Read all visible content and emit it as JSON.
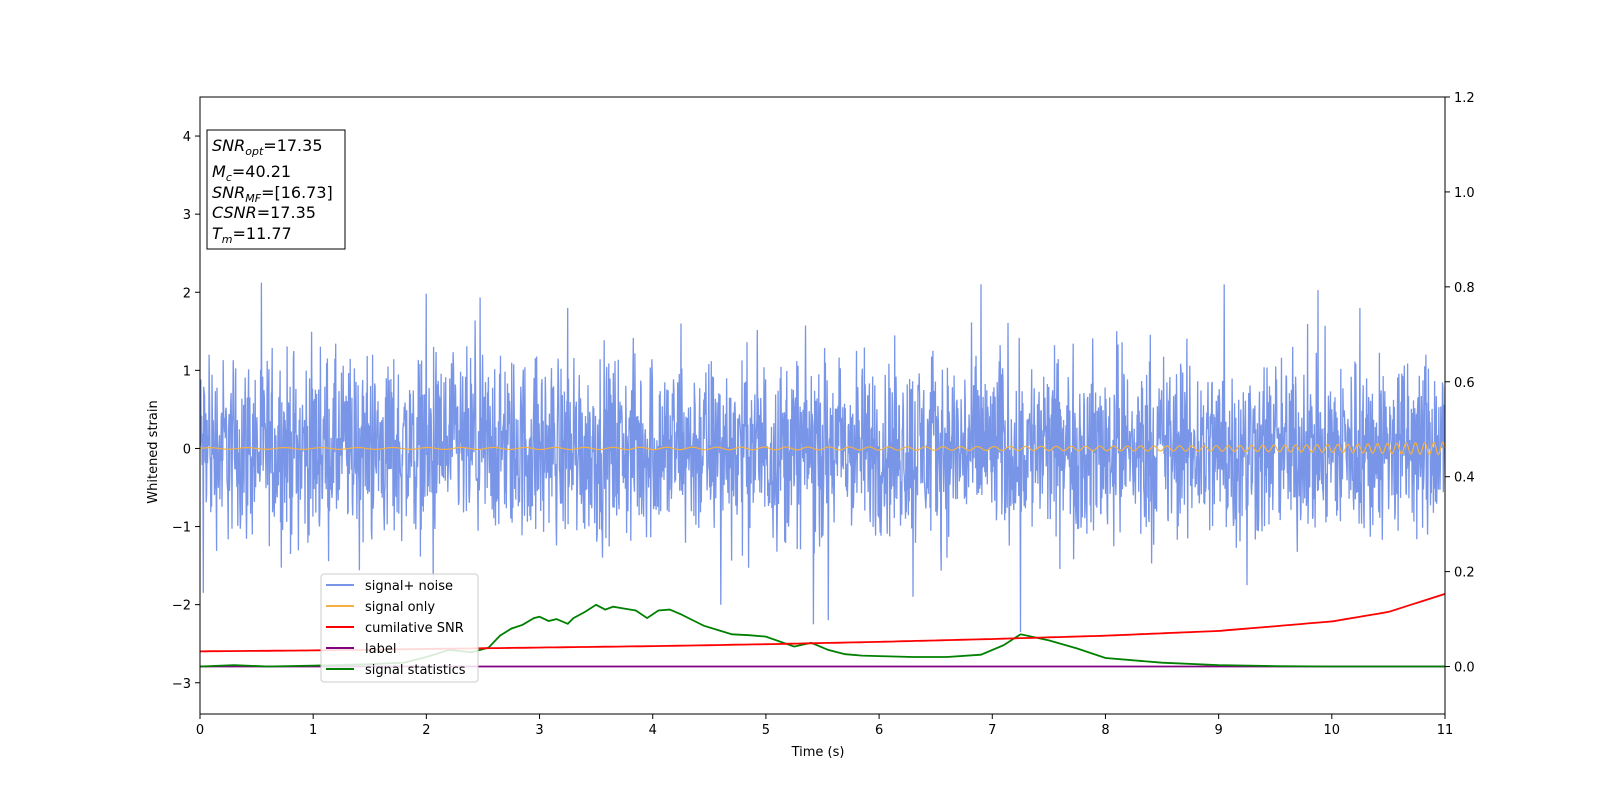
{
  "chart_data": {
    "type": "line",
    "xlabel": "Time (s)",
    "ylabel": "Whitened strain",
    "xlim": [
      0,
      11
    ],
    "ylim": [
      -3.4,
      4.5
    ],
    "ylim_right": [
      -0.1,
      1.2
    ],
    "x_ticks": [
      0,
      1,
      2,
      3,
      4,
      5,
      6,
      7,
      8,
      9,
      10,
      11
    ],
    "y_ticks": [
      -3,
      -2,
      -1,
      0,
      1,
      2,
      3,
      4
    ],
    "y_ticks_right": [
      "0.0",
      "0.2",
      "0.4",
      "0.6",
      "0.8",
      "1.0",
      "1.2"
    ],
    "grid": false,
    "legend_position": "lower-left",
    "series": [
      {
        "name": "signal+ noise",
        "axis": "left",
        "color": "#7895e8",
        "style": "noise-band",
        "typical_amplitude": 1.2,
        "spikes": [
          [
            0.03,
            -1.85
          ],
          [
            0.08,
            1.2
          ],
          [
            2.0,
            1.98
          ],
          [
            2.06,
            -1.75
          ],
          [
            3.25,
            1.8
          ],
          [
            4.25,
            1.6
          ],
          [
            4.6,
            -2.0
          ],
          [
            5.42,
            -2.25
          ],
          [
            5.55,
            -2.2
          ],
          [
            6.3,
            -1.9
          ],
          [
            6.9,
            2.1
          ],
          [
            7.25,
            -2.35
          ],
          [
            8.1,
            1.5
          ],
          [
            9.05,
            2.1
          ],
          [
            9.25,
            -1.75
          ],
          [
            10.25,
            1.8
          ]
        ]
      },
      {
        "name": "signal only",
        "axis": "left",
        "color": "#f5b041",
        "x": [
          0,
          2,
          4,
          6,
          8,
          9,
          10,
          10.5,
          11
        ],
        "amplitude": [
          0.01,
          0.012,
          0.015,
          0.02,
          0.03,
          0.035,
          0.05,
          0.065,
          0.08
        ]
      },
      {
        "name": "cumilative SNR",
        "axis": "right",
        "color": "#ff0000",
        "x": [
          0,
          1,
          2,
          3,
          4,
          5,
          6,
          7,
          8,
          9,
          10,
          10.5,
          11
        ],
        "values": [
          0.032,
          0.034,
          0.037,
          0.04,
          0.043,
          0.047,
          0.052,
          0.058,
          0.065,
          0.075,
          0.095,
          0.115,
          0.153
        ]
      },
      {
        "name": "label",
        "axis": "right",
        "color": "#800080",
        "x": [
          0,
          11
        ],
        "values": [
          0.0,
          0.0
        ]
      },
      {
        "name": "signal statistics",
        "axis": "right",
        "color": "#008000",
        "x": [
          0,
          0.3,
          0.6,
          1.0,
          1.5,
          1.8,
          2.0,
          2.2,
          2.4,
          2.55,
          2.65,
          2.75,
          2.85,
          2.95,
          3.0,
          3.08,
          3.15,
          3.25,
          3.3,
          3.4,
          3.5,
          3.58,
          3.65,
          3.75,
          3.85,
          3.95,
          4.05,
          4.15,
          4.25,
          4.35,
          4.45,
          4.6,
          4.7,
          4.85,
          5.0,
          5.25,
          5.4,
          5.55,
          5.7,
          5.85,
          6.0,
          6.3,
          6.6,
          6.9,
          7.1,
          7.25,
          7.5,
          7.75,
          8.0,
          8.5,
          9.0,
          9.5,
          10.0,
          10.5,
          11.0
        ],
        "values": [
          0.0,
          0.003,
          0.0,
          0.002,
          0.005,
          0.008,
          0.02,
          0.035,
          0.03,
          0.04,
          0.065,
          0.08,
          0.088,
          0.102,
          0.105,
          0.096,
          0.1,
          0.09,
          0.102,
          0.115,
          0.13,
          0.12,
          0.126,
          0.122,
          0.118,
          0.102,
          0.118,
          0.12,
          0.11,
          0.098,
          0.086,
          0.075,
          0.068,
          0.066,
          0.063,
          0.042,
          0.05,
          0.035,
          0.026,
          0.023,
          0.022,
          0.02,
          0.02,
          0.025,
          0.045,
          0.068,
          0.055,
          0.038,
          0.018,
          0.008,
          0.003,
          0.001,
          0.0,
          0.0,
          0.0
        ]
      }
    ],
    "info_box": [
      {
        "base": "SNR",
        "sub": "opt",
        "value": "=17.35"
      },
      {
        "base": "M",
        "sub": "c",
        "value": "=40.21"
      },
      {
        "base": "SNR",
        "sub": "MF",
        "value": "=[16.73]"
      },
      {
        "base": "CSNR",
        "sub": "",
        "value": "=17.35"
      },
      {
        "base": "T",
        "sub": "m",
        "value": "=11.77"
      }
    ]
  }
}
